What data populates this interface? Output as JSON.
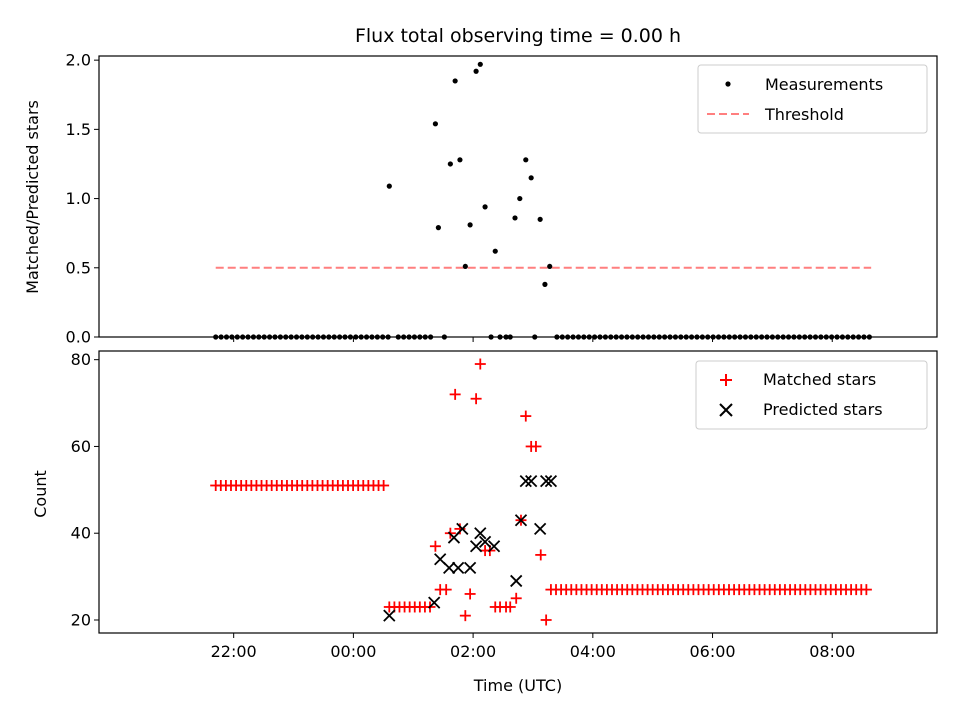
{
  "chart_data": [
    {
      "type": "scatter",
      "panel": "top",
      "title": "Flux total observing time = 0.00 h",
      "xlabel": "",
      "ylabel": "Matched/Predicted stars",
      "x_unit": "hours since 00:00 UTC",
      "xlim": [
        -4.25,
        9.75
      ],
      "ylim": [
        0,
        2.03
      ],
      "yticks": [
        0.0,
        0.5,
        1.0,
        1.5,
        2.0
      ],
      "ytick_labels": [
        "0.0",
        "0.5",
        "1.0",
        "1.5",
        "2.0"
      ],
      "xticks": [
        -2,
        0,
        2,
        4,
        6,
        8
      ],
      "grid": false,
      "legend": {
        "placement": "top-right",
        "entries": [
          "Measurements",
          "Threshold"
        ]
      },
      "series": [
        {
          "name": "Measurements",
          "color": "#000000",
          "marker": "dot",
          "points": [
            [
              0.6,
              1.09
            ],
            [
              1.37,
              1.54
            ],
            [
              1.42,
              0.79
            ],
            [
              1.62,
              1.25
            ],
            [
              1.7,
              1.85
            ],
            [
              1.78,
              1.28
            ],
            [
              1.87,
              0.51
            ],
            [
              1.95,
              0.81
            ],
            [
              2.05,
              1.92
            ],
            [
              2.12,
              1.97
            ],
            [
              2.2,
              0.94
            ],
            [
              2.37,
              0.62
            ],
            [
              2.7,
              0.86
            ],
            [
              2.78,
              1.0
            ],
            [
              2.88,
              1.28
            ],
            [
              2.97,
              1.15
            ],
            [
              3.12,
              0.85
            ],
            [
              3.2,
              0.38
            ],
            [
              3.28,
              0.51
            ]
          ],
          "zero_segments": [
            [
              -2.3,
              0.6
            ],
            [
              0.75,
              1.35
            ],
            [
              3.4,
              8.65
            ]
          ],
          "zero_spacing": 0.09,
          "zero_extra": [
            1.52,
            2.3,
            2.45,
            2.55,
            2.62,
            3.03
          ]
        },
        {
          "name": "Threshold",
          "color": "#ff7f7f",
          "style": "dashed",
          "line": [
            [
              -2.3,
              0.5
            ],
            [
              8.65,
              0.5
            ]
          ]
        }
      ]
    },
    {
      "type": "scatter",
      "panel": "bottom",
      "title": "",
      "xlabel": "Time (UTC)",
      "ylabel": "Count",
      "x_unit": "hours since 00:00 UTC",
      "xlim": [
        -4.25,
        9.75
      ],
      "ylim": [
        17,
        82
      ],
      "yticks": [
        20,
        40,
        60,
        80
      ],
      "ytick_labels": [
        "20",
        "40",
        "60",
        "80"
      ],
      "xticks": [
        -2,
        0,
        2,
        4,
        6,
        8
      ],
      "xtick_labels": [
        "22:00",
        "00:00",
        "02:00",
        "04:00",
        "06:00",
        "08:00"
      ],
      "grid": false,
      "legend": {
        "placement": "top-right",
        "entries": [
          "Matched stars",
          "Predicted stars"
        ]
      },
      "series": [
        {
          "name": "Matched stars",
          "color": "#ff0000",
          "marker": "plus",
          "points": [
            [
              1.37,
              37
            ],
            [
              1.45,
              27
            ],
            [
              1.55,
              27
            ],
            [
              1.62,
              40
            ],
            [
              1.7,
              72
            ],
            [
              1.78,
              41
            ],
            [
              1.87,
              21
            ],
            [
              1.95,
              26
            ],
            [
              2.05,
              71
            ],
            [
              2.12,
              79
            ],
            [
              2.2,
              36
            ],
            [
              2.28,
              36
            ],
            [
              2.37,
              23
            ],
            [
              2.45,
              23
            ],
            [
              2.55,
              23
            ],
            [
              2.62,
              23
            ],
            [
              2.72,
              25
            ],
            [
              2.8,
              43
            ],
            [
              2.88,
              67
            ],
            [
              2.97,
              60
            ],
            [
              3.05,
              60
            ],
            [
              3.13,
              35
            ],
            [
              3.22,
              20
            ]
          ],
          "runs": [
            {
              "from": -2.3,
              "to": 0.55,
              "step": 0.085,
              "value": 51
            },
            {
              "from": 0.6,
              "to": 1.35,
              "step": 0.085,
              "value": 23
            },
            {
              "from": 3.3,
              "to": 8.65,
              "step": 0.085,
              "value": 27
            }
          ]
        },
        {
          "name": "Predicted stars",
          "color": "#000000",
          "marker": "x",
          "points": [
            [
              0.6,
              21
            ],
            [
              1.35,
              24
            ],
            [
              1.45,
              34
            ],
            [
              1.6,
              32
            ],
            [
              1.68,
              39
            ],
            [
              1.75,
              32
            ],
            [
              1.82,
              41
            ],
            [
              1.95,
              32
            ],
            [
              2.05,
              37
            ],
            [
              2.12,
              40
            ],
            [
              2.2,
              38
            ],
            [
              2.35,
              37
            ],
            [
              2.72,
              29
            ],
            [
              2.8,
              43
            ],
            [
              2.88,
              52
            ],
            [
              2.97,
              52
            ],
            [
              3.12,
              41
            ],
            [
              3.22,
              52
            ],
            [
              3.3,
              52
            ]
          ]
        }
      ]
    }
  ]
}
